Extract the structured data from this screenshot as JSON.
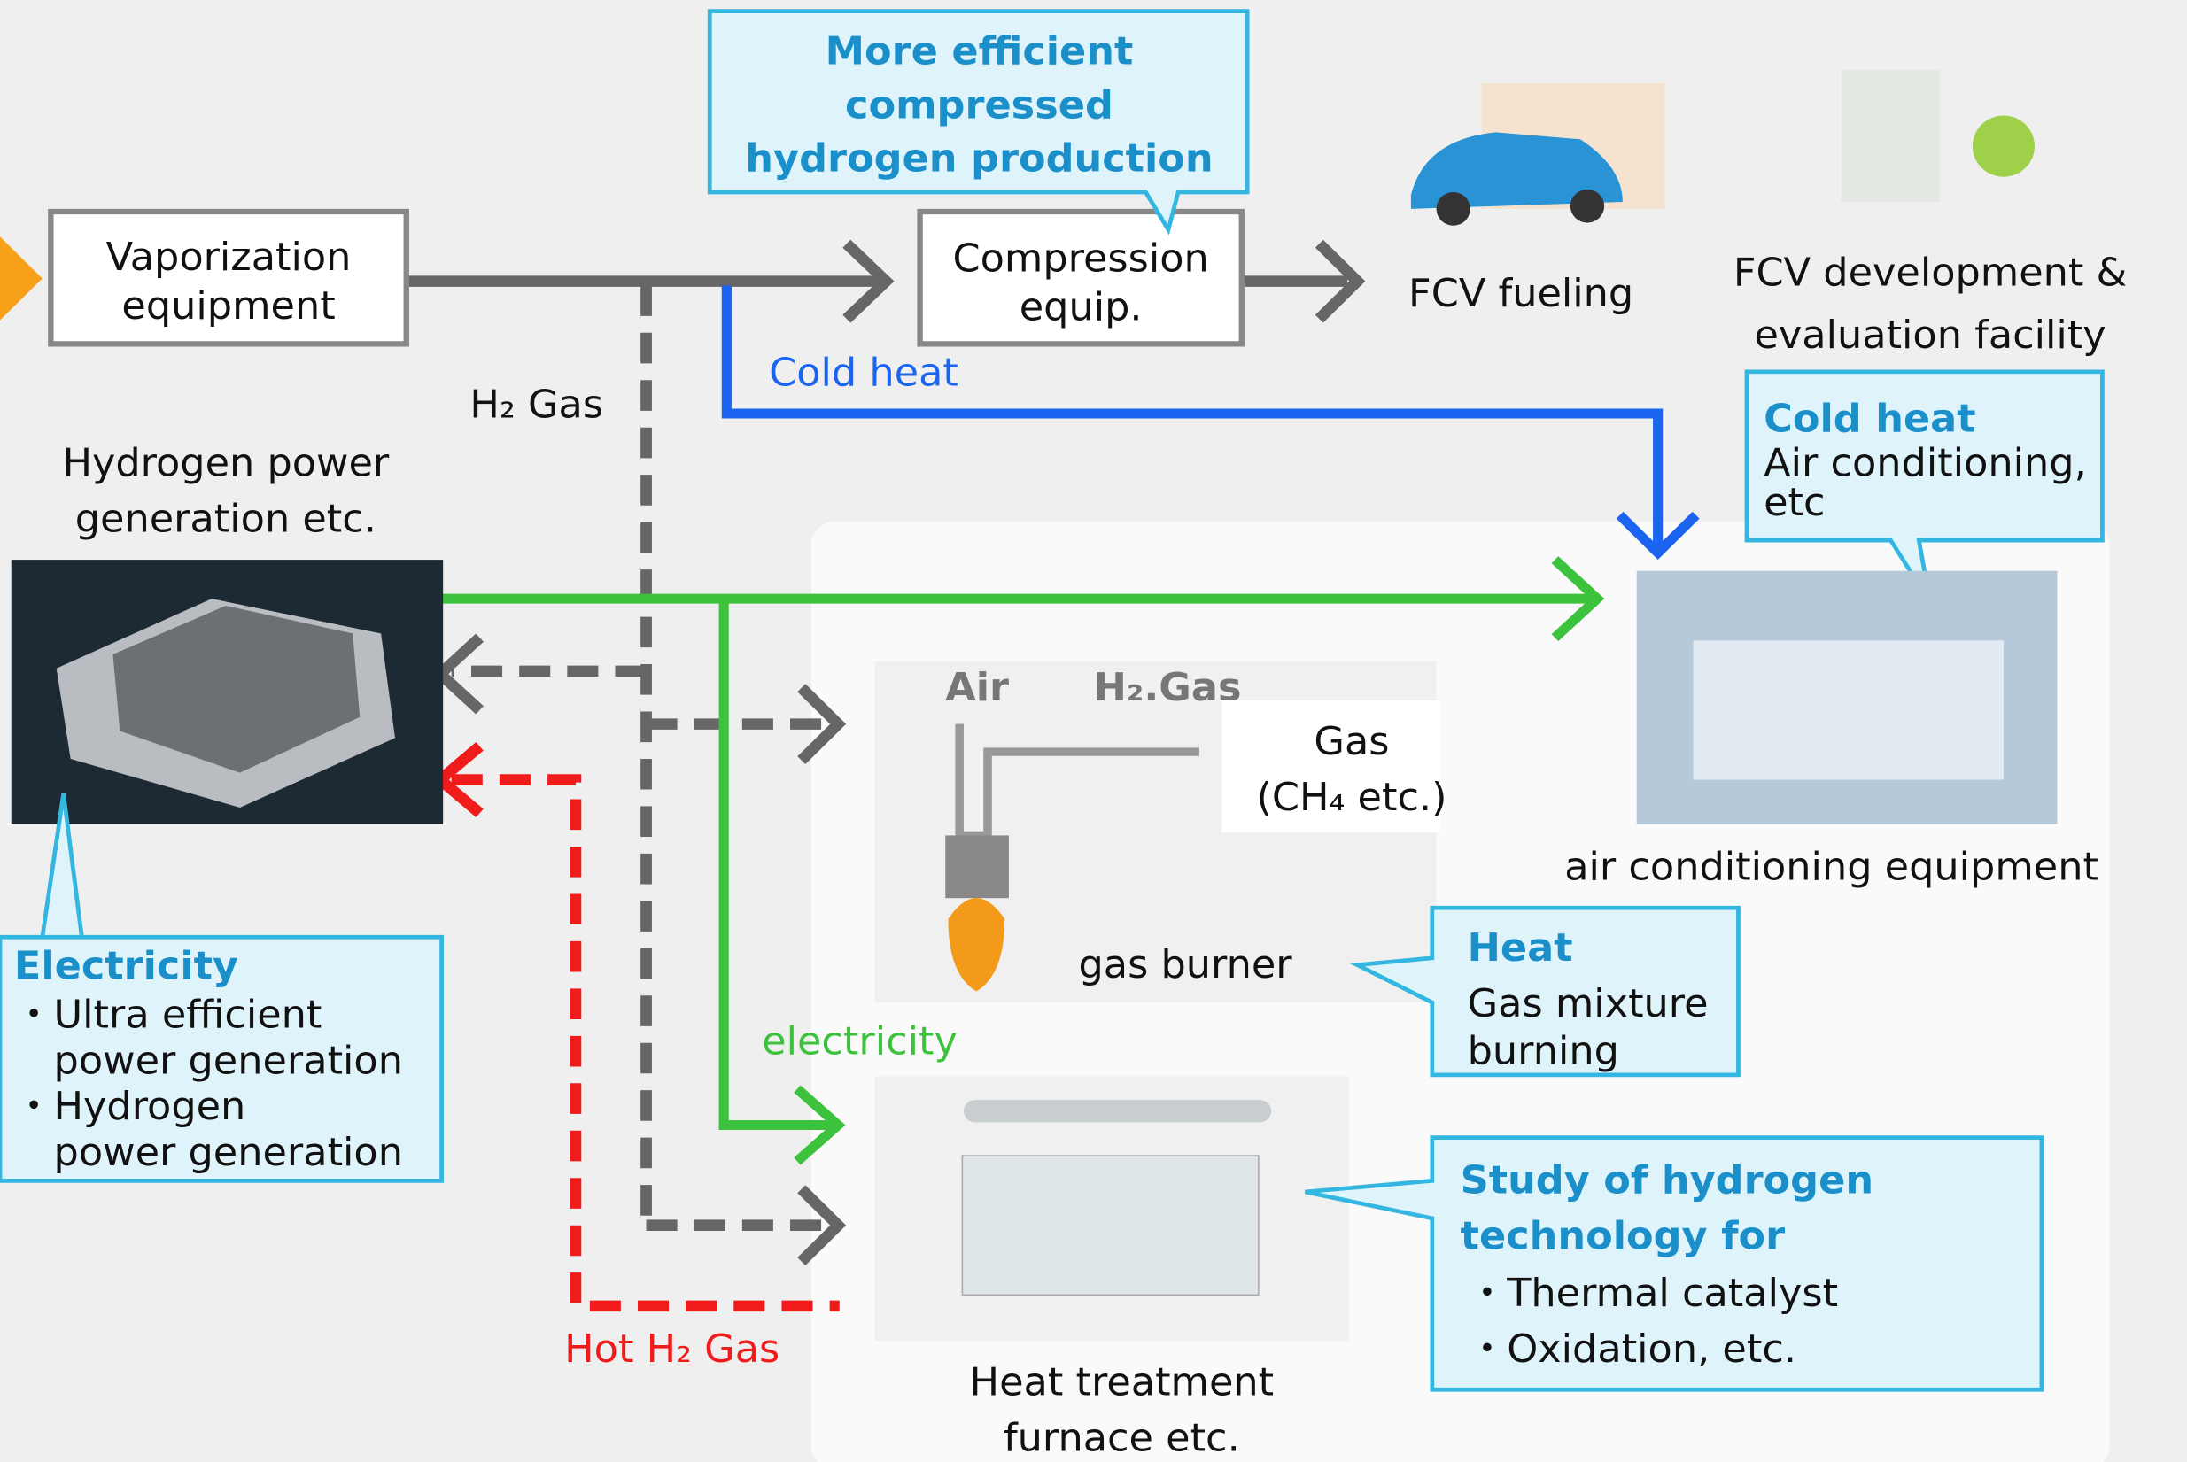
{
  "vaporization": [
    "Vaporization",
    "equipment"
  ],
  "compression": [
    "Compression",
    "equip."
  ],
  "compression_callout": [
    "More efficient",
    "compressed",
    "hydrogen production"
  ],
  "fcv_fueling": "FCV fueling",
  "fcv_facility": [
    "FCV development &",
    "evaluation facility"
  ],
  "h2_gas": "H₂ Gas",
  "cold_heat": "Cold heat",
  "cold_heat_callout": {
    "title": "Cold heat",
    "body": [
      "Air conditioning,",
      "etc"
    ]
  },
  "hydrogen_power": [
    "Hydrogen power",
    "generation etc."
  ],
  "burner_air": "Air",
  "burner_h2": "H₂.Gas",
  "gas": [
    "Gas",
    "(CH₄ etc.)"
  ],
  "gas_burner": "gas burner",
  "air_conditioning": "air conditioning equipment",
  "electricity": "electricity",
  "electricity_callout": {
    "title": "Electricity",
    "items": [
      "・Ultra efficient",
      "power generation",
      "・Hydrogen",
      "power generation"
    ]
  },
  "heat_callout": {
    "title": "Heat",
    "body": [
      "Gas mixture",
      "burning"
    ]
  },
  "study_callout": {
    "title": [
      "Study of hydrogen",
      "technology for"
    ],
    "items": [
      "・Thermal catalyst",
      "・Oxidation, etc."
    ]
  },
  "hot_h2": "Hot H₂ Gas",
  "furnace": [
    "Heat treatment",
    "furnace etc."
  ]
}
